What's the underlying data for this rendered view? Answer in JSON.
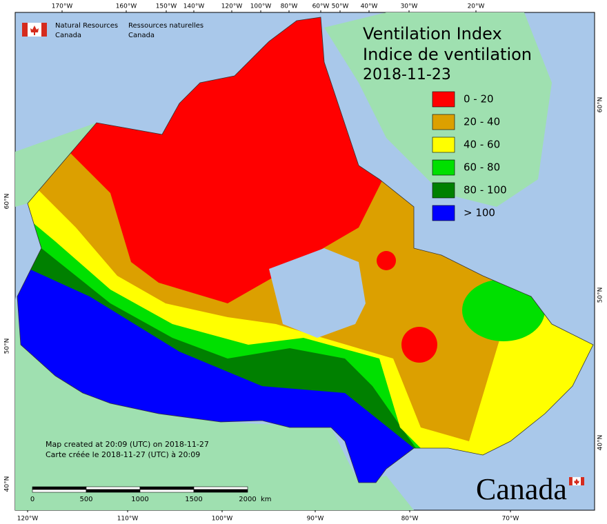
{
  "header": {
    "agency_en": [
      "Natural Resources",
      "Canada"
    ],
    "agency_fr": [
      "Ressources naturelles",
      "Canada"
    ]
  },
  "title": {
    "line1": "Ventilation Index",
    "line2": "Indice de ventilation",
    "date": "2018-11-23"
  },
  "legend": [
    {
      "label": "0 - 20",
      "color": "#ff0000"
    },
    {
      "label": "20 - 40",
      "color": "#dca000"
    },
    {
      "label": "40 - 60",
      "color": "#ffff00"
    },
    {
      "label": "60 - 80",
      "color": "#00e000"
    },
    {
      "label": "80 - 100",
      "color": "#008000"
    },
    {
      "label": "> 100",
      "color": "#0000ff"
    }
  ],
  "top_labels": [
    "170°W",
    "160°W",
    "150°W",
    "140°W",
    "120°W",
    "100°W",
    "80°W",
    "60°W",
    "50°W",
    "40°W",
    "30°W",
    "20°W"
  ],
  "bottom_labels": [
    "120°W",
    "110°W",
    "100°W",
    "90°W",
    "80°W",
    "70°W"
  ],
  "left_labels": [
    "60°N",
    "50°N",
    "40°N"
  ],
  "right_labels": [
    "60°N",
    "50°N",
    "40°N"
  ],
  "notes": [
    "Map created at 20:09 (UTC) on 2018-11-27",
    "Carte créée le 2018-11-27 (UTC) à 20:09"
  ],
  "scale": {
    "labels": [
      "0",
      "500",
      "1000",
      "1500",
      "2000"
    ],
    "unit": "km"
  },
  "wordmark": "Canada"
}
